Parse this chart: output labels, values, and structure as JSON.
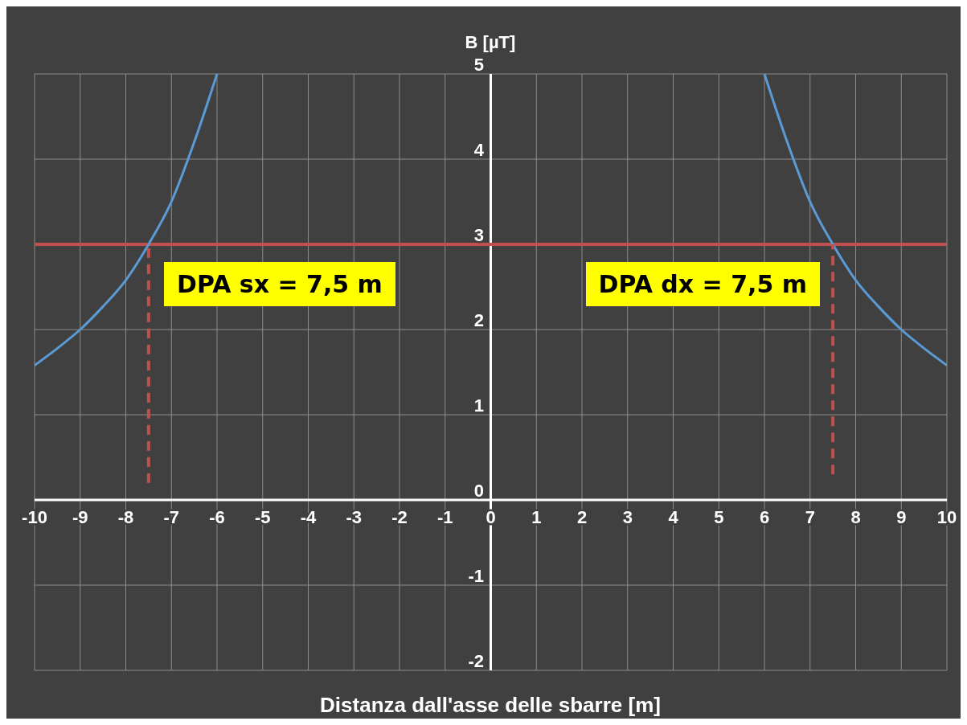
{
  "chart_data": {
    "type": "line",
    "xlabel": "Distanza dall'asse delle sbarre [m]",
    "ylabel": "B [µT]",
    "xlim": [
      -10,
      10
    ],
    "xticks": [
      -10,
      -9,
      -8,
      -7,
      -6,
      -5,
      -4,
      -3,
      -2,
      -1,
      0,
      1,
      2,
      3,
      4,
      5,
      6,
      7,
      8,
      9,
      10
    ],
    "ylim": [
      -2,
      5
    ],
    "yticks": [
      -2,
      -1,
      0,
      1,
      2,
      3,
      4,
      5
    ],
    "grid": true,
    "marker": "none",
    "series": [
      {
        "color": "#5b9bd5",
        "line_style": "solid",
        "x": [
          -10,
          -9.5,
          -9,
          -8.5,
          -8,
          -7.5,
          -7,
          -6.5,
          -6
        ],
        "values": [
          1.58,
          1.78,
          2.0,
          2.27,
          2.58,
          3.0,
          3.5,
          4.2,
          5.0
        ]
      },
      {
        "color": "#5b9bd5",
        "line_style": "solid",
        "x": [
          6,
          6.5,
          7,
          7.5,
          8,
          8.5,
          9,
          9.5,
          10
        ],
        "values": [
          5.0,
          4.2,
          3.5,
          3.0,
          2.58,
          2.27,
          2.0,
          1.78,
          1.58
        ]
      },
      {
        "color": "#c0504d",
        "line_style": "dashed",
        "x": [
          -7.5,
          -7.5
        ],
        "values": [
          0.2,
          3
        ]
      },
      {
        "color": "#c0504d",
        "line_style": "dashed",
        "x": [
          7.5,
          7.5
        ],
        "values": [
          0.3,
          3
        ]
      }
    ],
    "ref_lines": [
      {
        "axis": "y",
        "value": 3,
        "color": "#c0504d",
        "line_style": "solid"
      }
    ],
    "annotations": [
      {
        "text": "DPA sx = 7,5 m",
        "x": -7.5,
        "y": 3
      },
      {
        "text": "DPA dx = 7,5 m",
        "x": 7.5,
        "y": 3
      }
    ]
  }
}
